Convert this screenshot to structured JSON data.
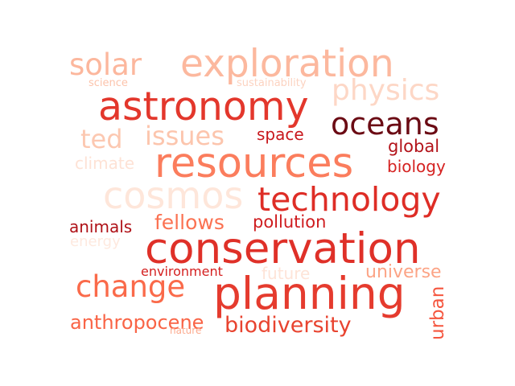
{
  "words": [
    {
      "text": "exploration",
      "color": "#fcb89e"
    },
    {
      "text": "solar",
      "color": "#fcb79d"
    },
    {
      "text": "science",
      "color": "#fcc3ab"
    },
    {
      "text": "sustainability",
      "color": "#fcd3c1"
    },
    {
      "text": "astronomy",
      "color": "#e3372c"
    },
    {
      "text": "physics",
      "color": "#fdd7c6"
    },
    {
      "text": "oceans",
      "color": "#6b0b14"
    },
    {
      "text": "ted",
      "color": "#fcc8b1"
    },
    {
      "text": "issues",
      "color": "#fcc5ad"
    },
    {
      "text": "space",
      "color": "#c8171c"
    },
    {
      "text": "global",
      "color": "#b3131a"
    },
    {
      "text": "resources",
      "color": "#fb7d5d"
    },
    {
      "text": "climate",
      "color": "#fee2d5"
    },
    {
      "text": "biology",
      "color": "#d52221"
    },
    {
      "text": "cosmos",
      "color": "#fee6da"
    },
    {
      "text": "technology",
      "color": "#de2d26"
    },
    {
      "text": "animals",
      "color": "#af1117"
    },
    {
      "text": "fellows",
      "color": "#fb7252"
    },
    {
      "text": "pollution",
      "color": "#cf1c1f"
    },
    {
      "text": "energy",
      "color": "#fee9df"
    },
    {
      "text": "conservation",
      "color": "#df3028"
    },
    {
      "text": "environment",
      "color": "#d42020"
    },
    {
      "text": "future",
      "color": "#fee4d8"
    },
    {
      "text": "universe",
      "color": "#fca486"
    },
    {
      "text": "change",
      "color": "#fa6a4a"
    },
    {
      "text": "planning",
      "color": "#e53b2e"
    },
    {
      "text": "urban",
      "color": "#f5563f"
    },
    {
      "text": "anthropocene",
      "color": "#f96446"
    },
    {
      "text": "biodiversity",
      "color": "#e8432f"
    },
    {
      "text": "nature",
      "color": "#fcab8f"
    }
  ]
}
